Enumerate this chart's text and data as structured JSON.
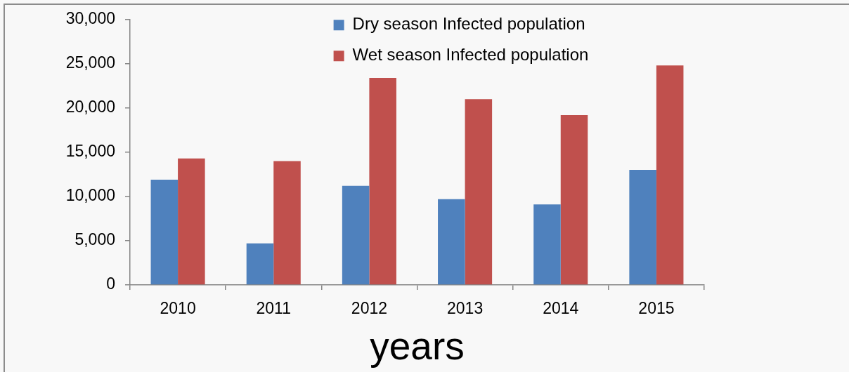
{
  "chart_data": {
    "type": "bar",
    "xlabel": "years",
    "categories": [
      "2010",
      "2011",
      "2012",
      "2013",
      "2014",
      "2015"
    ],
    "series": [
      {
        "name": "Dry season Infected population",
        "color": "#4f81bd",
        "values": [
          11900,
          4700,
          11200,
          9700,
          9100,
          13000
        ]
      },
      {
        "name": "Wet season Infected population",
        "color": "#c0504d",
        "values": [
          14300,
          14000,
          23400,
          21000,
          19200,
          24800
        ]
      }
    ],
    "ylim": [
      0,
      30000
    ],
    "yticks": [
      0,
      {
        "value": 5000,
        "label": "5,000"
      },
      {
        "value": 10000,
        "label": "10,000"
      },
      {
        "value": 15000,
        "label": "15,000"
      },
      {
        "value": 20000,
        "label": "20,000"
      },
      {
        "value": 25000,
        "label": "25,000"
      },
      {
        "value": 30000,
        "label": "30,000"
      }
    ],
    "grid": false,
    "legend": "top"
  }
}
